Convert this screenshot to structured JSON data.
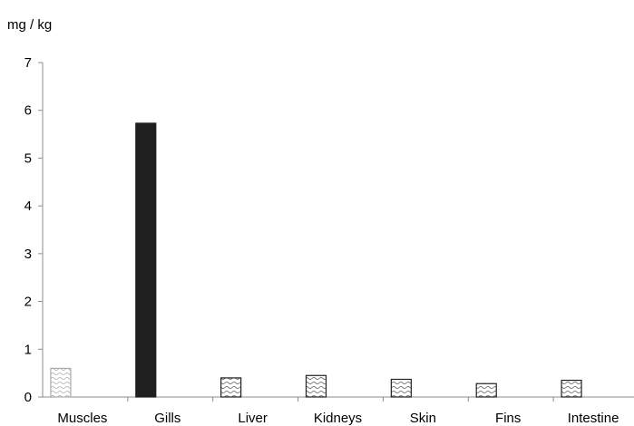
{
  "chart_data": {
    "type": "bar",
    "title": "",
    "xlabel": "",
    "ylabel": "mg / kg",
    "categories": [
      "Muscles",
      "Gills",
      "Liver",
      "Kidneys",
      "Skin",
      "Fins",
      "Intestine"
    ],
    "values": [
      0.6,
      5.73,
      0.4,
      0.45,
      0.37,
      0.28,
      0.35
    ],
    "ylim": [
      0,
      7
    ],
    "yticks": [
      "0",
      "1",
      "2",
      "3",
      "4",
      "5",
      "6",
      "7"
    ],
    "grid": false,
    "legend": "none",
    "bar_styles": [
      "light-hatched",
      "solid",
      "hatched",
      "hatched",
      "hatched",
      "hatched",
      "hatched"
    ],
    "colors": {
      "solid": "#1f1f1f",
      "outline": "#222222",
      "axis": "#8c8c8c"
    }
  }
}
